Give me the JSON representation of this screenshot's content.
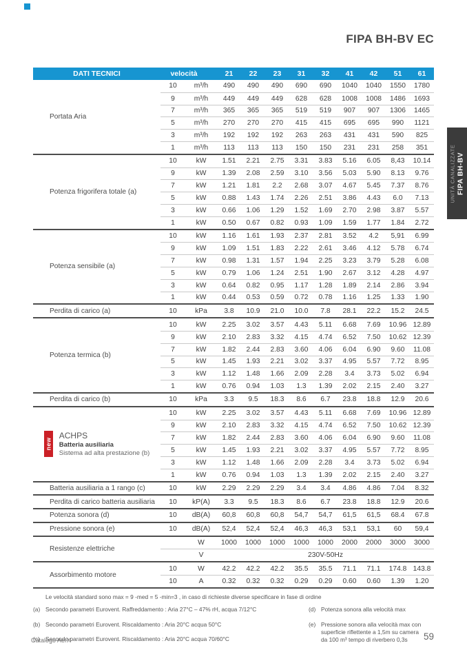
{
  "page": {
    "title": "FIPA BH-BV EC",
    "footer_left": "Catalogo AerX",
    "page_number": "59"
  },
  "colors": {
    "accent_blue": "#1795d1",
    "rule_dark": "#4d4d4d",
    "badge_red": "#cb2026",
    "tab_dark": "#3b3b3b"
  },
  "side_tab": {
    "category": "UNITÀ CANALIZZATE",
    "product": "FIPA BH-BV"
  },
  "table": {
    "header": {
      "label": "DATI TECNICI",
      "speed_label": "velocità",
      "models": [
        "21",
        "22",
        "23",
        "31",
        "32",
        "41",
        "42",
        "51",
        "61"
      ]
    },
    "sections": [
      {
        "name": "Portata Aria",
        "rows": [
          {
            "speed": "10",
            "unit": "m³/h",
            "values": [
              "490",
              "490",
              "490",
              "690",
              "690",
              "1040",
              "1040",
              "1550",
              "1780"
            ]
          },
          {
            "speed": "9",
            "unit": "m³/h",
            "values": [
              "449",
              "449",
              "449",
              "628",
              "628",
              "1008",
              "1008",
              "1486",
              "1693"
            ]
          },
          {
            "speed": "7",
            "unit": "m³/h",
            "values": [
              "365",
              "365",
              "365",
              "519",
              "519",
              "907",
              "907",
              "1306",
              "1465"
            ]
          },
          {
            "speed": "5",
            "unit": "m³/h",
            "values": [
              "270",
              "270",
              "270",
              "415",
              "415",
              "695",
              "695",
              "990",
              "1121"
            ]
          },
          {
            "speed": "3",
            "unit": "m³/h",
            "values": [
              "192",
              "192",
              "192",
              "263",
              "263",
              "431",
              "431",
              "590",
              "825"
            ]
          },
          {
            "speed": "1",
            "unit": "m³/h",
            "values": [
              "113",
              "113",
              "113",
              "150",
              "150",
              "231",
              "231",
              "258",
              "351"
            ]
          }
        ]
      },
      {
        "name": "Potenza frigorifera totale (a)",
        "rows": [
          {
            "speed": "10",
            "unit": "kW",
            "values": [
              "1.51",
              "2.21",
              "2.75",
              "3.31",
              "3.83",
              "5.16",
              "6.05",
              "8,43",
              "10.14"
            ]
          },
          {
            "speed": "9",
            "unit": "kW",
            "values": [
              "1.39",
              "2.08",
              "2.59",
              "3.10",
              "3.56",
              "5.03",
              "5.90",
              "8.13",
              "9.76"
            ]
          },
          {
            "speed": "7",
            "unit": "kW",
            "values": [
              "1.21",
              "1.81",
              "2.2",
              "2.68",
              "3.07",
              "4.67",
              "5.45",
              "7.37",
              "8.76"
            ]
          },
          {
            "speed": "5",
            "unit": "kW",
            "values": [
              "0.88",
              "1.43",
              "1.74",
              "2.26",
              "2.51",
              "3.86",
              "4.43",
              "6.0",
              "7.13"
            ]
          },
          {
            "speed": "3",
            "unit": "kW",
            "values": [
              "0.66",
              "1.06",
              "1.29",
              "1.52",
              "1.69",
              "2.70",
              "2.98",
              "3.87",
              "5.57"
            ]
          },
          {
            "speed": "1",
            "unit": "kW",
            "values": [
              "0.50",
              "0.67",
              "0.82",
              "0.93",
              "1.09",
              "1.59",
              "1.77",
              "1.84",
              "2.72"
            ]
          }
        ]
      },
      {
        "name": "Potenza sensibile (a)",
        "rows": [
          {
            "speed": "10",
            "unit": "kW",
            "values": [
              "1.16",
              "1.61",
              "1.93",
              "2.37",
              "2.81",
              "3.52",
              "4.2",
              "5,91",
              "6.99"
            ]
          },
          {
            "speed": "9",
            "unit": "kW",
            "values": [
              "1.09",
              "1.51",
              "1.83",
              "2.22",
              "2.61",
              "3.46",
              "4.12",
              "5.78",
              "6.74"
            ]
          },
          {
            "speed": "7",
            "unit": "kW",
            "values": [
              "0.98",
              "1.31",
              "1.57",
              "1.94",
              "2.25",
              "3.23",
              "3.79",
              "5.28",
              "6.08"
            ]
          },
          {
            "speed": "5",
            "unit": "kW",
            "values": [
              "0.79",
              "1.06",
              "1.24",
              "2.51",
              "1.90",
              "2.67",
              "3.12",
              "4.28",
              "4.97"
            ]
          },
          {
            "speed": "3",
            "unit": "kW",
            "values": [
              "0.64",
              "0.82",
              "0.95",
              "1.17",
              "1.28",
              "1.89",
              "2.14",
              "2.86",
              "3.94"
            ]
          },
          {
            "speed": "1",
            "unit": "kW",
            "values": [
              "0.44",
              "0.53",
              "0.59",
              "0.72",
              "0.78",
              "1.16",
              "1.25",
              "1.33",
              "1.90"
            ]
          }
        ]
      },
      {
        "name": "Perdita di carico (a)",
        "rows": [
          {
            "speed": "10",
            "unit": "kPa",
            "values": [
              "3.8",
              "10.9",
              "21.0",
              "10.0",
              "7.8",
              "28.1",
              "22.2",
              "15.2",
              "24.5"
            ]
          }
        ]
      },
      {
        "name": "Potenza termica (b)",
        "rows": [
          {
            "speed": "10",
            "unit": "kW",
            "values": [
              "2.25",
              "3.02",
              "3.57",
              "4.43",
              "5.11",
              "6.68",
              "7.69",
              "10.96",
              "12.89"
            ]
          },
          {
            "speed": "9",
            "unit": "kW",
            "values": [
              "2.10",
              "2.83",
              "3.32",
              "4.15",
              "4.74",
              "6.52",
              "7.50",
              "10.62",
              "12.39"
            ]
          },
          {
            "speed": "7",
            "unit": "kW",
            "values": [
              "1.82",
              "2.44",
              "2.83",
              "3.60",
              "4.06",
              "6.04",
              "6.90",
              "9.60",
              "11.08"
            ]
          },
          {
            "speed": "5",
            "unit": "kW",
            "values": [
              "1.45",
              "1.93",
              "2.21",
              "3.02",
              "3.37",
              "4.95",
              "5.57",
              "7.72",
              "8.95"
            ]
          },
          {
            "speed": "3",
            "unit": "kW",
            "values": [
              "1.12",
              "1.48",
              "1.66",
              "2.09",
              "2.28",
              "3.4",
              "3.73",
              "5.02",
              "6.94"
            ]
          },
          {
            "speed": "1",
            "unit": "kW",
            "values": [
              "0.76",
              "0.94",
              "1.03",
              "1.3",
              "1.39",
              "2.02",
              "2.15",
              "2.40",
              "3.27"
            ]
          }
        ]
      },
      {
        "name": "Perdita di carico (b)",
        "rows": [
          {
            "speed": "10",
            "unit": "kPa",
            "values": [
              "3.3",
              "9.5",
              "18.3",
              "8.6",
              "6.7",
              "23.8",
              "18.8",
              "12.9",
              "20.6"
            ]
          }
        ]
      },
      {
        "name": "ACHPS",
        "badge": "new",
        "name_lines": [
          "ACHPS",
          "Batteria ausiliaria",
          "Sistema ad alta prestazione (b)"
        ],
        "rows": [
          {
            "speed": "10",
            "unit": "kW",
            "values": [
              "2.25",
              "3.02",
              "3.57",
              "4.43",
              "5.11",
              "6.68",
              "7.69",
              "10.96",
              "12.89"
            ]
          },
          {
            "speed": "9",
            "unit": "kW",
            "values": [
              "2.10",
              "2.83",
              "3.32",
              "4.15",
              "4.74",
              "6.52",
              "7.50",
              "10.62",
              "12.39"
            ]
          },
          {
            "speed": "7",
            "unit": "kW",
            "values": [
              "1.82",
              "2.44",
              "2.83",
              "3.60",
              "4.06",
              "6.04",
              "6.90",
              "9.60",
              "11.08"
            ]
          },
          {
            "speed": "5",
            "unit": "kW",
            "values": [
              "1.45",
              "1.93",
              "2.21",
              "3.02",
              "3.37",
              "4.95",
              "5.57",
              "7.72",
              "8.95"
            ]
          },
          {
            "speed": "3",
            "unit": "kW",
            "values": [
              "1.12",
              "1.48",
              "1.66",
              "2.09",
              "2.28",
              "3.4",
              "3.73",
              "5.02",
              "6.94"
            ]
          },
          {
            "speed": "1",
            "unit": "kW",
            "values": [
              "0.76",
              "0.94",
              "1.03",
              "1.3",
              "1.39",
              "2.02",
              "2.15",
              "2.40",
              "3.27"
            ]
          }
        ]
      },
      {
        "name": "Batteria ausiliaria a 1 rango (c)",
        "rows": [
          {
            "speed": "10",
            "unit": "kW",
            "values": [
              "2.29",
              "2.29",
              "2.29",
              "3.4",
              "3.4",
              "4.86",
              "4.86",
              "7.04",
              "8.32"
            ]
          }
        ]
      },
      {
        "name": "Perdita di carico batteria ausiliaria",
        "rows": [
          {
            "speed": "10",
            "unit": "kP(A)",
            "values": [
              "3.3",
              "9.5",
              "18.3",
              "8.6",
              "6.7",
              "23.8",
              "18.8",
              "12.9",
              "20.6"
            ]
          }
        ]
      },
      {
        "name": "Potenza sonora (d)",
        "rows": [
          {
            "speed": "10",
            "unit": "dB(A)",
            "values": [
              "60,8",
              "60,8",
              "60,8",
              "54,7",
              "54,7",
              "61,5",
              "61,5",
              "68.4",
              "67.8"
            ]
          }
        ]
      },
      {
        "name": "Pressione sonora (e)",
        "rows": [
          {
            "speed": "10",
            "unit": "dB(A)",
            "values": [
              "52,4",
              "52,4",
              "52,4",
              "46,3",
              "46,3",
              "53,1",
              "53,1",
              "60",
              "59,4"
            ]
          }
        ]
      },
      {
        "name": "Resistenze elettriche",
        "rows": [
          {
            "speed": "",
            "unit": "W",
            "values": [
              "1000",
              "1000",
              "1000",
              "1000",
              "1000",
              "2000",
              "2000",
              "3000",
              "3000"
            ]
          },
          {
            "speed": "",
            "unit": "V",
            "span_value": "230V-50Hz"
          }
        ]
      },
      {
        "name": "Assorbimento motore",
        "rows": [
          {
            "speed": "10",
            "unit": "W",
            "values": [
              "42.2",
              "42.2",
              "42.2",
              "35.5",
              "35.5",
              "71.1",
              "71.1",
              "174.8",
              "143.8"
            ]
          },
          {
            "speed": "10",
            "unit": "A",
            "values": [
              "0.32",
              "0.32",
              "0.32",
              "0.29",
              "0.29",
              "0.60",
              "0.60",
              "1.39",
              "1.20"
            ]
          }
        ]
      }
    ]
  },
  "footnotes": {
    "intro": "Le velocità standard sono max = 9 -med = 5 -min=3 , in caso di richieste diverse specificare in fase di ordine",
    "left": [
      {
        "id": "(a)",
        "text": "Secondo parametri Eurovent. Raffreddamento : Aria 27°C – 47% rH, acqua 7/12°C"
      },
      {
        "id": "(b)",
        "text": "Secondo parametri Eurovent. Riscaldamento : Aria 20°C acqua 50°C"
      },
      {
        "id": "(c)",
        "text": "Secondo parametri Eurovent. Riscaldamento : Aria 20°C acqua 70/60°C"
      }
    ],
    "right": [
      {
        "id": "(d)",
        "text": "Potenza sonora alla velocità max"
      },
      {
        "id": "(e)",
        "text": "Pressione sonora alla velocità max con superficie riflettente a 1,5m su camera da 100 m³ tempo di riverbero 0,3s"
      }
    ]
  }
}
